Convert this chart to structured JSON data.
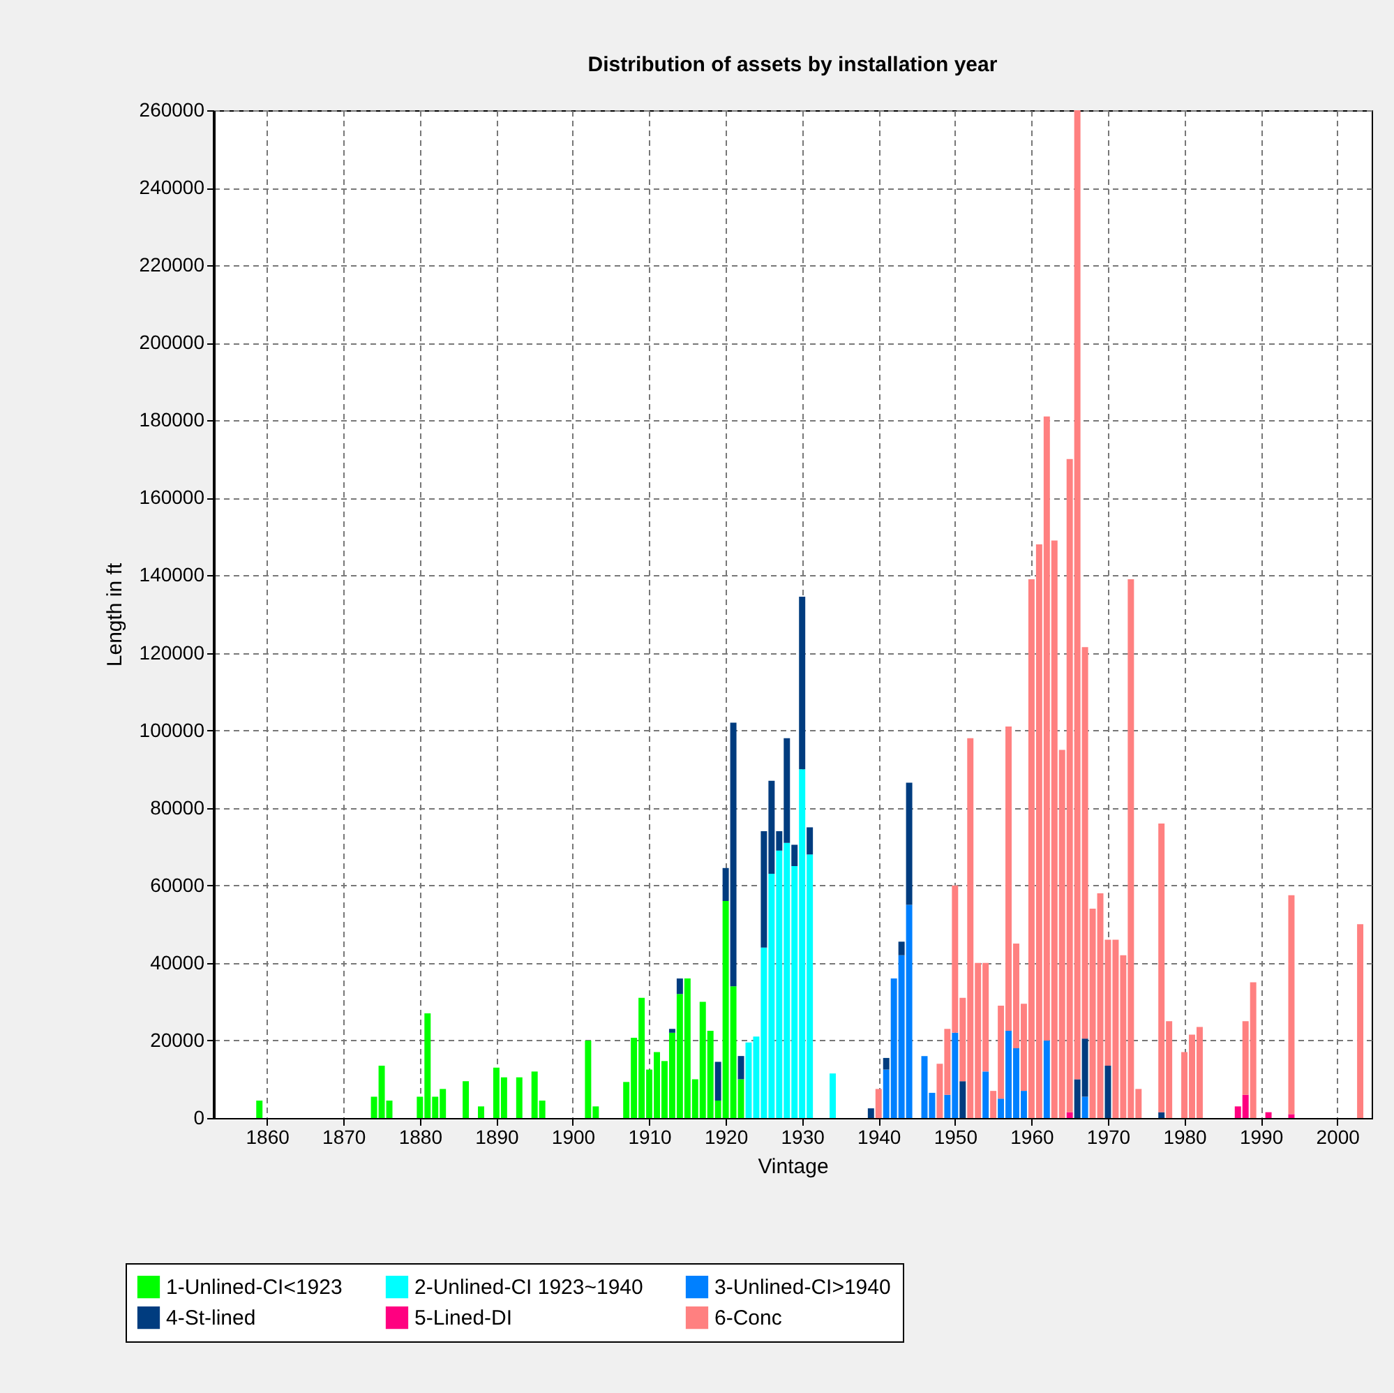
{
  "chart_data": {
    "type": "bar",
    "title": "Distribution of assets by installation year",
    "xlabel": "Vintage",
    "ylabel": "Length in ft",
    "stacked": true,
    "grid": true,
    "legend": "bottom",
    "xlim": [
      1853,
      2004.5
    ],
    "xticks": [
      1860,
      1870,
      1880,
      1890,
      1900,
      1910,
      1920,
      1930,
      1940,
      1950,
      1960,
      1970,
      1980,
      1990,
      2000
    ],
    "ylim": [
      0,
      260000
    ],
    "yticks": [
      0,
      20000,
      40000,
      60000,
      80000,
      100000,
      120000,
      140000,
      160000,
      180000,
      200000,
      220000,
      240000,
      260000
    ],
    "x": [
      1859,
      1874,
      1875,
      1876,
      1880,
      1881,
      1882,
      1883,
      1886,
      1888,
      1890,
      1891,
      1893,
      1895,
      1896,
      1902,
      1903,
      1907,
      1908,
      1909,
      1910,
      1911,
      1912,
      1913,
      1914,
      1915,
      1916,
      1917,
      1918,
      1919,
      1920,
      1921,
      1922,
      1923,
      1924,
      1925,
      1926,
      1927,
      1928,
      1929,
      1930,
      1931,
      1934,
      1939,
      1940,
      1941,
      1942,
      1943,
      1944,
      1946,
      1947,
      1948,
      1949,
      1950,
      1951,
      1952,
      1953,
      1954,
      1955,
      1956,
      1957,
      1958,
      1959,
      1960,
      1961,
      1962,
      1963,
      1964,
      1965,
      1966,
      1967,
      1968,
      1969,
      1970,
      1971,
      1972,
      1973,
      1974,
      1977,
      1978,
      1980,
      1981,
      1982,
      1987,
      1988,
      1989,
      1991,
      1994,
      2003
    ],
    "series": [
      {
        "name": "1-Unlined-CI<1923",
        "color": "#00ff00",
        "values": [
          4500,
          5500,
          13500,
          4500,
          5500,
          27000,
          5500,
          7500,
          9500,
          3000,
          13000,
          10500,
          10500,
          12000,
          4500,
          20000,
          3000,
          9300,
          20700,
          31000,
          12500,
          17000,
          14700,
          22000,
          32000,
          36000,
          10000,
          30000,
          22500,
          4500,
          56000,
          34000,
          10000,
          null,
          null,
          null,
          null,
          null,
          null,
          null,
          null,
          null,
          null,
          null,
          null,
          null,
          null,
          null,
          null,
          null,
          null,
          null,
          null,
          null,
          null,
          null,
          null,
          null,
          null,
          null,
          null,
          null,
          null,
          null,
          null,
          null,
          null,
          null,
          null,
          null,
          null,
          null,
          null,
          null,
          null,
          null,
          null,
          null,
          null,
          null,
          null,
          null,
          null,
          null,
          null,
          null,
          null,
          null,
          null
        ]
      },
      {
        "name": "2-Unlined-CI 1923~1940",
        "color": "#00ffff",
        "values": [
          null,
          null,
          null,
          null,
          null,
          null,
          null,
          null,
          null,
          null,
          null,
          null,
          null,
          null,
          null,
          null,
          null,
          null,
          null,
          null,
          null,
          null,
          null,
          null,
          null,
          null,
          null,
          null,
          null,
          null,
          null,
          null,
          null,
          19500,
          21000,
          44000,
          63000,
          69000,
          71000,
          65000,
          90000,
          68000,
          11500,
          null,
          null,
          null,
          null,
          null,
          null,
          null,
          null,
          null,
          null,
          null,
          null,
          null,
          null,
          null,
          null,
          null,
          null,
          null,
          null,
          null,
          null,
          null,
          null,
          null,
          null,
          null,
          null,
          null,
          null,
          null,
          null,
          null,
          null,
          null,
          null,
          null,
          null,
          null,
          null,
          null,
          null,
          null,
          null,
          null,
          null
        ]
      },
      {
        "name": "3-Unlined-CI>1940",
        "color": "#0080ff",
        "values": [
          null,
          null,
          null,
          null,
          null,
          null,
          null,
          null,
          null,
          null,
          null,
          null,
          null,
          null,
          null,
          null,
          null,
          null,
          null,
          null,
          null,
          null,
          null,
          null,
          null,
          null,
          null,
          null,
          null,
          null,
          null,
          null,
          null,
          null,
          null,
          null,
          null,
          null,
          null,
          null,
          null,
          null,
          null,
          null,
          null,
          12500,
          36000,
          42000,
          55000,
          16000,
          6500,
          null,
          6000,
          22000,
          null,
          null,
          null,
          12000,
          null,
          5000,
          22500,
          18000,
          7000,
          null,
          null,
          20000,
          null,
          null,
          null,
          null,
          5500,
          null,
          null,
          null,
          null,
          null,
          null,
          null,
          null,
          null,
          null,
          null,
          null,
          null,
          null,
          null,
          null,
          null,
          null
        ]
      },
      {
        "name": "4-St-lined",
        "color": "#003c7f",
        "values": [
          null,
          null,
          null,
          null,
          null,
          null,
          null,
          null,
          null,
          null,
          null,
          null,
          null,
          null,
          null,
          null,
          null,
          null,
          null,
          null,
          null,
          null,
          null,
          1000,
          4000,
          null,
          null,
          null,
          null,
          10000,
          8500,
          68000,
          6000,
          null,
          null,
          30000,
          24000,
          5000,
          27000,
          5500,
          44500,
          7000,
          null,
          2500,
          null,
          3000,
          null,
          3500,
          31500,
          null,
          null,
          null,
          null,
          null,
          9500,
          null,
          null,
          null,
          null,
          null,
          null,
          null,
          null,
          null,
          null,
          null,
          null,
          null,
          null,
          10000,
          15000,
          null,
          null,
          13500,
          null,
          null,
          null,
          null,
          1500,
          null,
          null,
          null,
          null,
          null,
          null,
          null,
          null,
          null,
          null
        ]
      },
      {
        "name": "5-Lined-DI",
        "color": "#ff0080",
        "values": [
          null,
          null,
          null,
          null,
          null,
          null,
          null,
          null,
          null,
          null,
          null,
          null,
          null,
          null,
          null,
          null,
          null,
          null,
          null,
          null,
          null,
          null,
          null,
          null,
          null,
          null,
          null,
          null,
          null,
          null,
          null,
          null,
          null,
          null,
          null,
          null,
          null,
          null,
          null,
          null,
          null,
          null,
          null,
          null,
          null,
          null,
          null,
          null,
          null,
          null,
          null,
          null,
          null,
          null,
          null,
          null,
          null,
          null,
          null,
          null,
          null,
          null,
          null,
          null,
          null,
          null,
          null,
          null,
          1500,
          null,
          null,
          null,
          null,
          null,
          null,
          null,
          null,
          null,
          null,
          null,
          null,
          null,
          null,
          3000,
          6000,
          null,
          1500,
          1000,
          null
        ]
      },
      {
        "name": "6-Conc",
        "color": "#ff8080",
        "values": [
          null,
          null,
          null,
          null,
          null,
          null,
          null,
          null,
          null,
          null,
          null,
          null,
          null,
          null,
          null,
          null,
          null,
          null,
          null,
          null,
          null,
          null,
          null,
          null,
          null,
          null,
          null,
          null,
          null,
          null,
          null,
          null,
          null,
          null,
          null,
          null,
          null,
          null,
          null,
          null,
          null,
          null,
          null,
          null,
          7500,
          null,
          null,
          null,
          null,
          null,
          null,
          14000,
          17000,
          38000,
          21500,
          98000,
          40000,
          28000,
          7000,
          24000,
          78500,
          27000,
          22500,
          139000,
          148000,
          161000,
          149000,
          95000,
          168500,
          250000,
          101000,
          54000,
          58000,
          32500,
          46000,
          42000,
          139000,
          7500,
          74500,
          25000,
          17000,
          21500,
          23500,
          null,
          19000,
          35000,
          null,
          56500,
          50000
        ]
      }
    ]
  }
}
